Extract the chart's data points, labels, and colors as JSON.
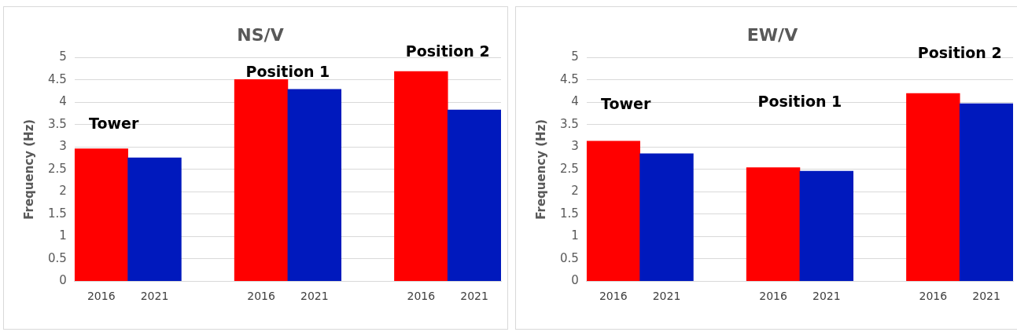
{
  "chart_data": [
    {
      "type": "bar",
      "title": "NS/V",
      "ylabel": "Frequency (Hz)",
      "categories": [
        "2016",
        "2021",
        null,
        "2016",
        "2021",
        null,
        "2016",
        "2021"
      ],
      "values": [
        2.96,
        2.76,
        null,
        4.51,
        4.29,
        null,
        4.69,
        3.83
      ],
      "colors": [
        "#ff0000",
        "#0019bd",
        null,
        "#ff0000",
        "#0019bd",
        null,
        "#ff0000",
        "#0019bd"
      ],
      "ylim": [
        0,
        5
      ],
      "yticks": [
        0,
        0.5,
        1,
        1.5,
        2,
        2.5,
        3,
        3.5,
        4,
        4.5,
        5
      ],
      "grid": "y",
      "legend": false,
      "annotations": [
        "Tower",
        "Position 1",
        "Position 2"
      ]
    },
    {
      "type": "bar",
      "title": "EW/V",
      "ylabel": "Frequency (Hz)",
      "categories": [
        "2016",
        "2021",
        null,
        "2016",
        "2021",
        null,
        "2016",
        "2021"
      ],
      "values": [
        3.13,
        2.85,
        null,
        2.54,
        2.46,
        null,
        4.2,
        3.97
      ],
      "colors": [
        "#ff0000",
        "#0019bd",
        null,
        "#ff0000",
        "#0019bd",
        null,
        "#ff0000",
        "#0019bd"
      ],
      "ylim": [
        0,
        5
      ],
      "yticks": [
        0,
        0.5,
        1,
        1.5,
        2,
        2.5,
        3,
        3.5,
        4,
        4.5,
        5
      ],
      "grid": "y",
      "legend": false,
      "annotations": [
        "Tower",
        "Position 1",
        "Position 2"
      ]
    }
  ]
}
